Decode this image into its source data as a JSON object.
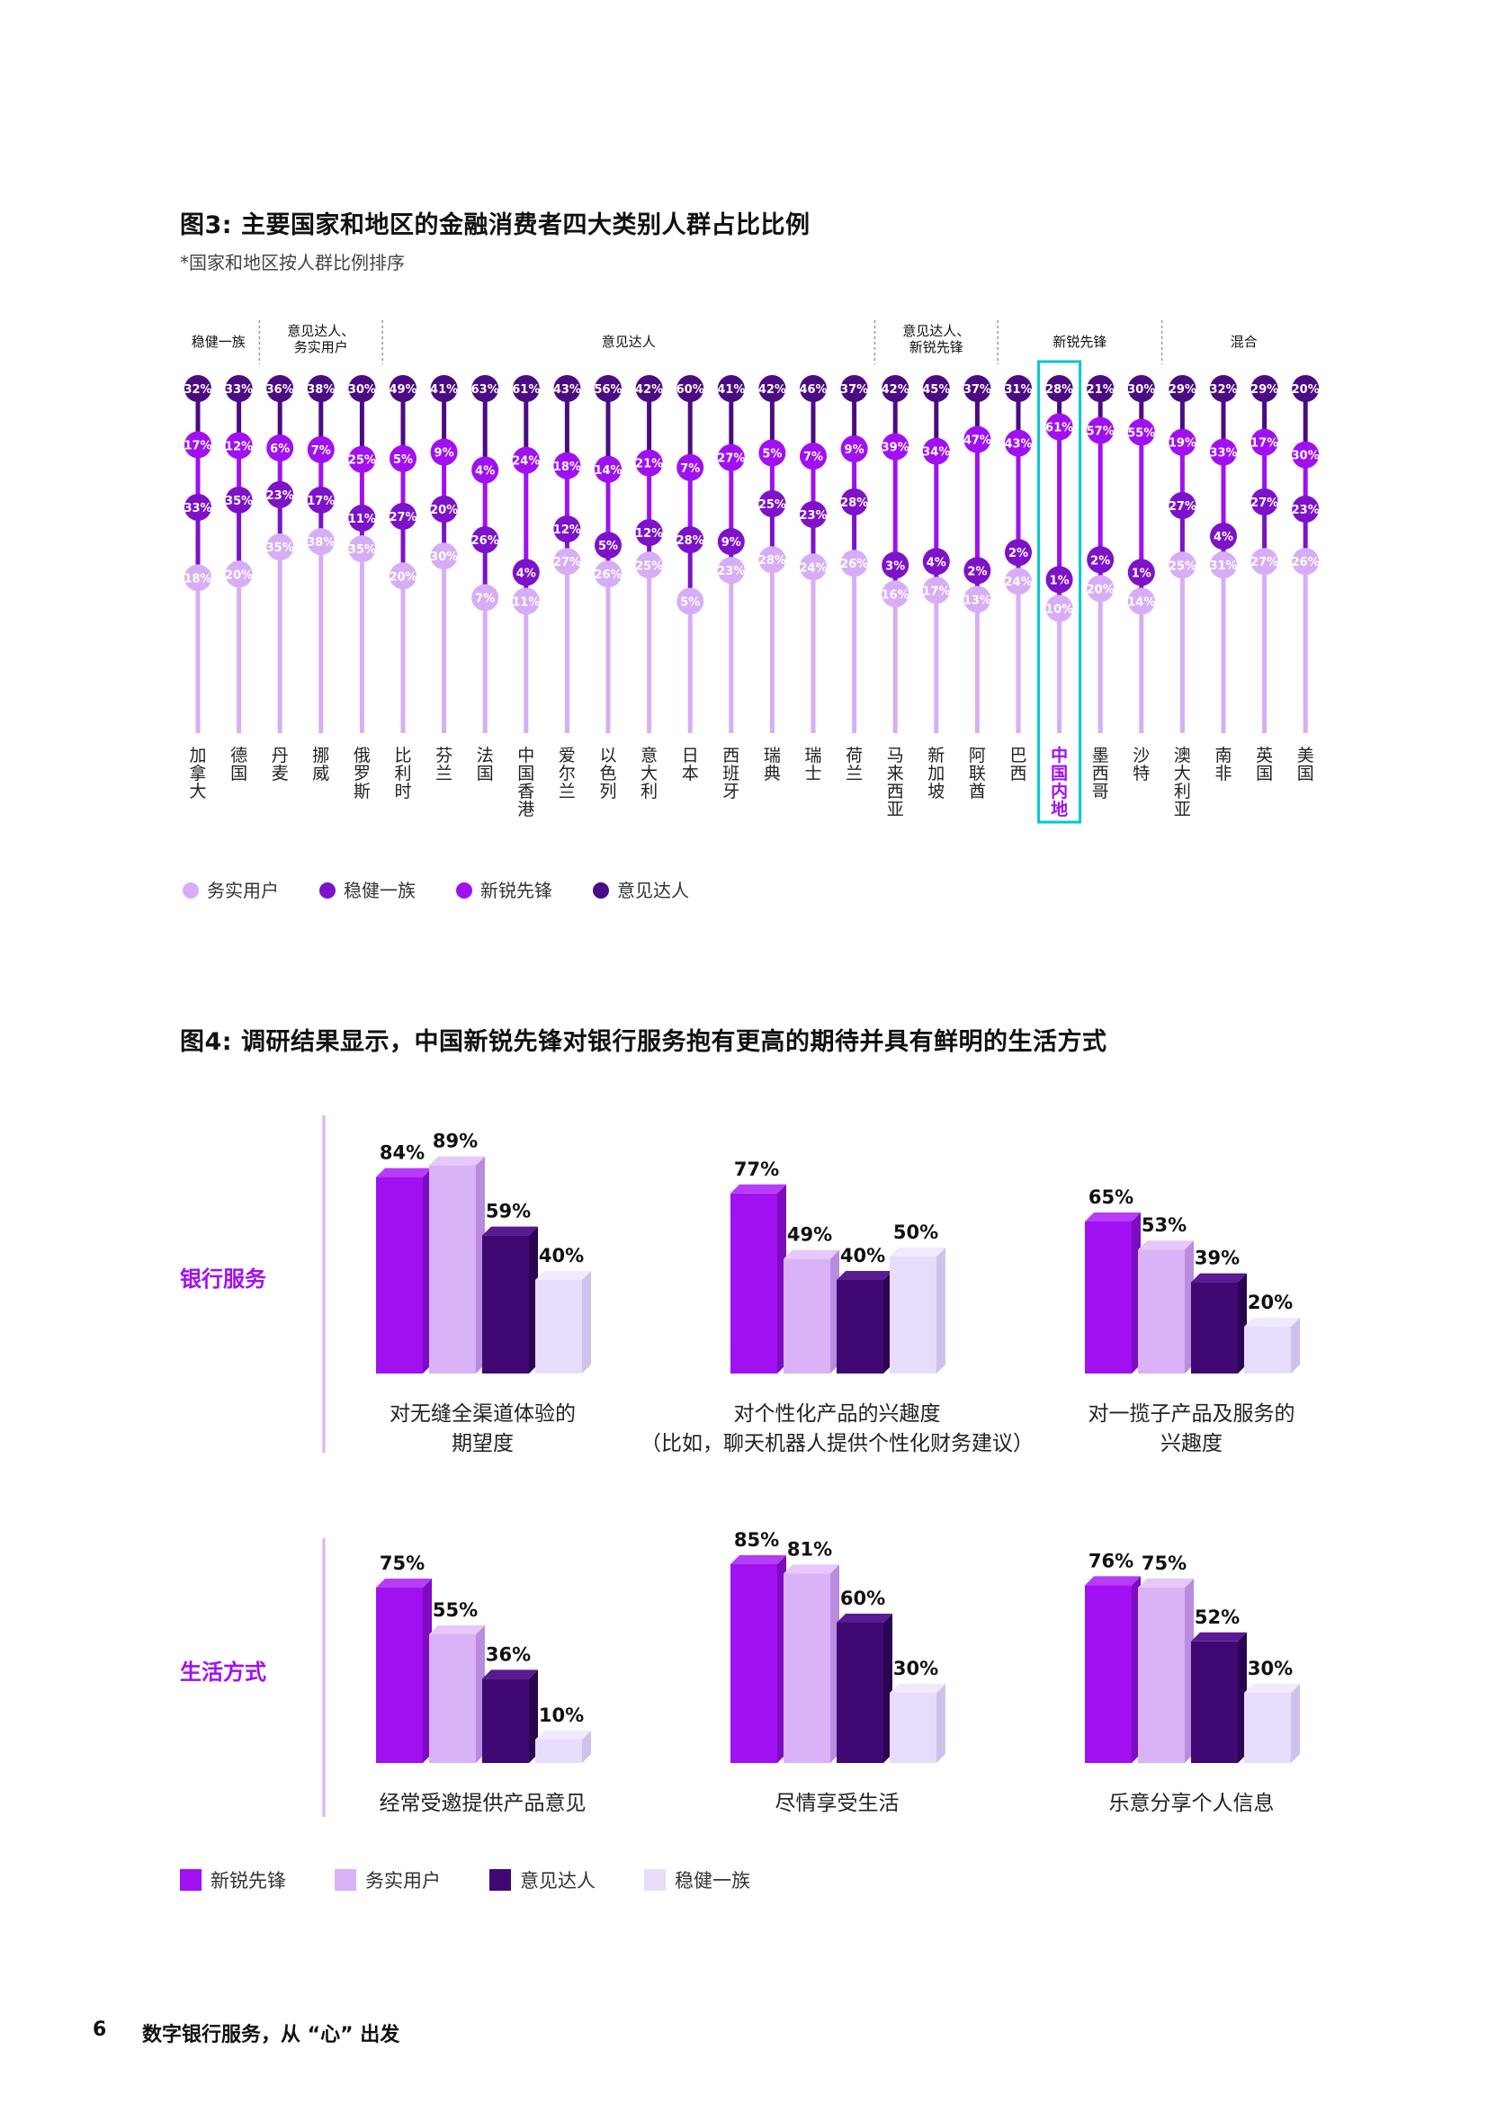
{
  "colors": {
    "pragmatic": "#d7aef5",
    "steady": "#7d12c9",
    "pioneer": "#a010f0",
    "opinion": "#4b0b82",
    "highlight": "#00c8d0",
    "fig4_pioneer": "#a010f0",
    "fig4_pragmatic": "#d9b2f7",
    "fig4_opinion": "#3f0872",
    "fig4_steady": "#e8dcfb"
  },
  "chart_data": [
    {
      "type": "scatter",
      "id": "fig3",
      "title": "图3: 主要国家和地区的金融消费者四大类别人群占比比例",
      "subtitle": "*国家和地区按人群比例排序",
      "ylim": [
        0,
        70
      ],
      "groups": [
        {
          "label_lines": [
            "稳健一族"
          ],
          "from": 0,
          "to": 1
        },
        {
          "label_lines": [
            "意见达人、",
            "务实用户"
          ],
          "from": 2,
          "to": 4
        },
        {
          "label_lines": [
            "意见达人"
          ],
          "from": 5,
          "to": 16
        },
        {
          "label_lines": [
            "意见达人、",
            "新锐先锋"
          ],
          "from": 17,
          "to": 19
        },
        {
          "label_lines": [
            "新锐先锋"
          ],
          "from": 20,
          "to": 23
        },
        {
          "label_lines": [
            "混合"
          ],
          "from": 24,
          "to": 27
        }
      ],
      "highlight_index": 21,
      "countries": [
        {
          "name": "加拿大",
          "opinion": 32,
          "pioneer": 17,
          "steady": 33,
          "pragmatic": 18
        },
        {
          "name": "德国",
          "opinion": 33,
          "pioneer": 12,
          "steady": 35,
          "pragmatic": 20
        },
        {
          "name": "丹麦",
          "opinion": 36,
          "pioneer": 6,
          "steady": 23,
          "pragmatic": 35
        },
        {
          "name": "挪威",
          "opinion": 38,
          "pioneer": 7,
          "steady": 17,
          "pragmatic": 38
        },
        {
          "name": "俄罗斯",
          "opinion": 30,
          "pioneer": 25,
          "steady": 11,
          "pragmatic": 35
        },
        {
          "name": "比利时",
          "opinion": 49,
          "pioneer": 5,
          "steady": 27,
          "pragmatic": 20
        },
        {
          "name": "芬兰",
          "opinion": 41,
          "pioneer": 9,
          "steady": 20,
          "pragmatic": 30
        },
        {
          "name": "法国",
          "opinion": 63,
          "pioneer": 4,
          "steady": 26,
          "pragmatic": 7
        },
        {
          "name": "中国香港",
          "opinion": 61,
          "pioneer": 24,
          "steady": 4,
          "pragmatic": 11
        },
        {
          "name": "爱尔兰",
          "opinion": 43,
          "pioneer": 18,
          "steady": 12,
          "pragmatic": 27
        },
        {
          "name": "以色列",
          "opinion": 56,
          "pioneer": 14,
          "steady": 5,
          "pragmatic": 26
        },
        {
          "name": "意大利",
          "opinion": 42,
          "pioneer": 21,
          "steady": 12,
          "pragmatic": 25
        },
        {
          "name": "日本",
          "opinion": 60,
          "pioneer": 7,
          "steady": 28,
          "pragmatic": 5
        },
        {
          "name": "西班牙",
          "opinion": 41,
          "pioneer": 27,
          "steady": 9,
          "pragmatic": 23
        },
        {
          "name": "瑞典",
          "opinion": 42,
          "pioneer": 5,
          "steady": 25,
          "pragmatic": 28
        },
        {
          "name": "瑞士",
          "opinion": 46,
          "pioneer": 7,
          "steady": 23,
          "pragmatic": 24
        },
        {
          "name": "荷兰",
          "opinion": 37,
          "pioneer": 9,
          "steady": 28,
          "pragmatic": 26
        },
        {
          "name": "马来西亚",
          "opinion": 42,
          "pioneer": 39,
          "steady": 3,
          "pragmatic": 16
        },
        {
          "name": "新加坡",
          "opinion": 45,
          "pioneer": 34,
          "steady": 4,
          "pragmatic": 17
        },
        {
          "name": "阿联酋",
          "opinion": 37,
          "pioneer": 47,
          "steady": 2,
          "pragmatic": 13
        },
        {
          "name": "巴西",
          "opinion": 31,
          "pioneer": 43,
          "steady": 2,
          "pragmatic": 24
        },
        {
          "name": "中国内地",
          "opinion": 28,
          "pioneer": 61,
          "steady": 1,
          "pragmatic": 10
        },
        {
          "name": "墨西哥",
          "opinion": 21,
          "pioneer": 57,
          "steady": 2,
          "pragmatic": 20
        },
        {
          "name": "沙特",
          "opinion": 30,
          "pioneer": 55,
          "steady": 1,
          "pragmatic": 14
        },
        {
          "name": "澳大利亚",
          "opinion": 29,
          "pioneer": 19,
          "steady": 27,
          "pragmatic": 25
        },
        {
          "name": "南非",
          "opinion": 32,
          "pioneer": 33,
          "steady": 4,
          "pragmatic": 31
        },
        {
          "name": "英国",
          "opinion": 29,
          "pioneer": 17,
          "steady": 27,
          "pragmatic": 27
        },
        {
          "name": "美国",
          "opinion": 20,
          "pioneer": 30,
          "steady": 23,
          "pragmatic": 26
        }
      ],
      "legend": [
        {
          "key": "pragmatic",
          "label": "务实用户"
        },
        {
          "key": "steady",
          "label": "稳健一族"
        },
        {
          "key": "pioneer",
          "label": "新锐先锋"
        },
        {
          "key": "opinion",
          "label": "意见达人"
        }
      ]
    },
    {
      "type": "bar",
      "id": "fig4",
      "title": "图4: 调研结果显示，中国新锐先锋对银行服务抱有更高的期待并具有鲜明的生活方式",
      "ylim": [
        0,
        100
      ],
      "series_order": [
        "新锐先锋",
        "务实用户",
        "意见达人",
        "稳健一族"
      ],
      "rows": [
        {
          "label": "银行服务",
          "charts": [
            {
              "caption_lines": [
                "对无缝全渠道体验的",
                "期望度"
              ],
              "values": [
                84,
                89,
                59,
                40
              ]
            },
            {
              "caption_lines": [
                "对个性化产品的兴趣度",
                "（比如，聊天机器人提供个性化财务建议）"
              ],
              "values": [
                77,
                49,
                40,
                50
              ]
            },
            {
              "caption_lines": [
                "对一揽子产品及服务的",
                "兴趣度"
              ],
              "values": [
                65,
                53,
                39,
                20
              ]
            }
          ]
        },
        {
          "label": "生活方式",
          "charts": [
            {
              "caption_lines": [
                "经常受邀提供产品意见"
              ],
              "values": [
                75,
                55,
                36,
                10
              ]
            },
            {
              "caption_lines": [
                "尽情享受生活"
              ],
              "values": [
                85,
                81,
                60,
                30
              ]
            },
            {
              "caption_lines": [
                "乐意分享个人信息"
              ],
              "values": [
                76,
                75,
                52,
                30
              ]
            }
          ]
        }
      ],
      "legend": [
        {
          "key": "fig4_pioneer",
          "label": "新锐先锋"
        },
        {
          "key": "fig4_pragmatic",
          "label": "务实用户"
        },
        {
          "key": "fig4_opinion",
          "label": "意见达人"
        },
        {
          "key": "fig4_steady",
          "label": "稳健一族"
        }
      ]
    }
  ],
  "footer": {
    "page_number": "6",
    "text": "数字银行服务，从 “心” 出发"
  }
}
